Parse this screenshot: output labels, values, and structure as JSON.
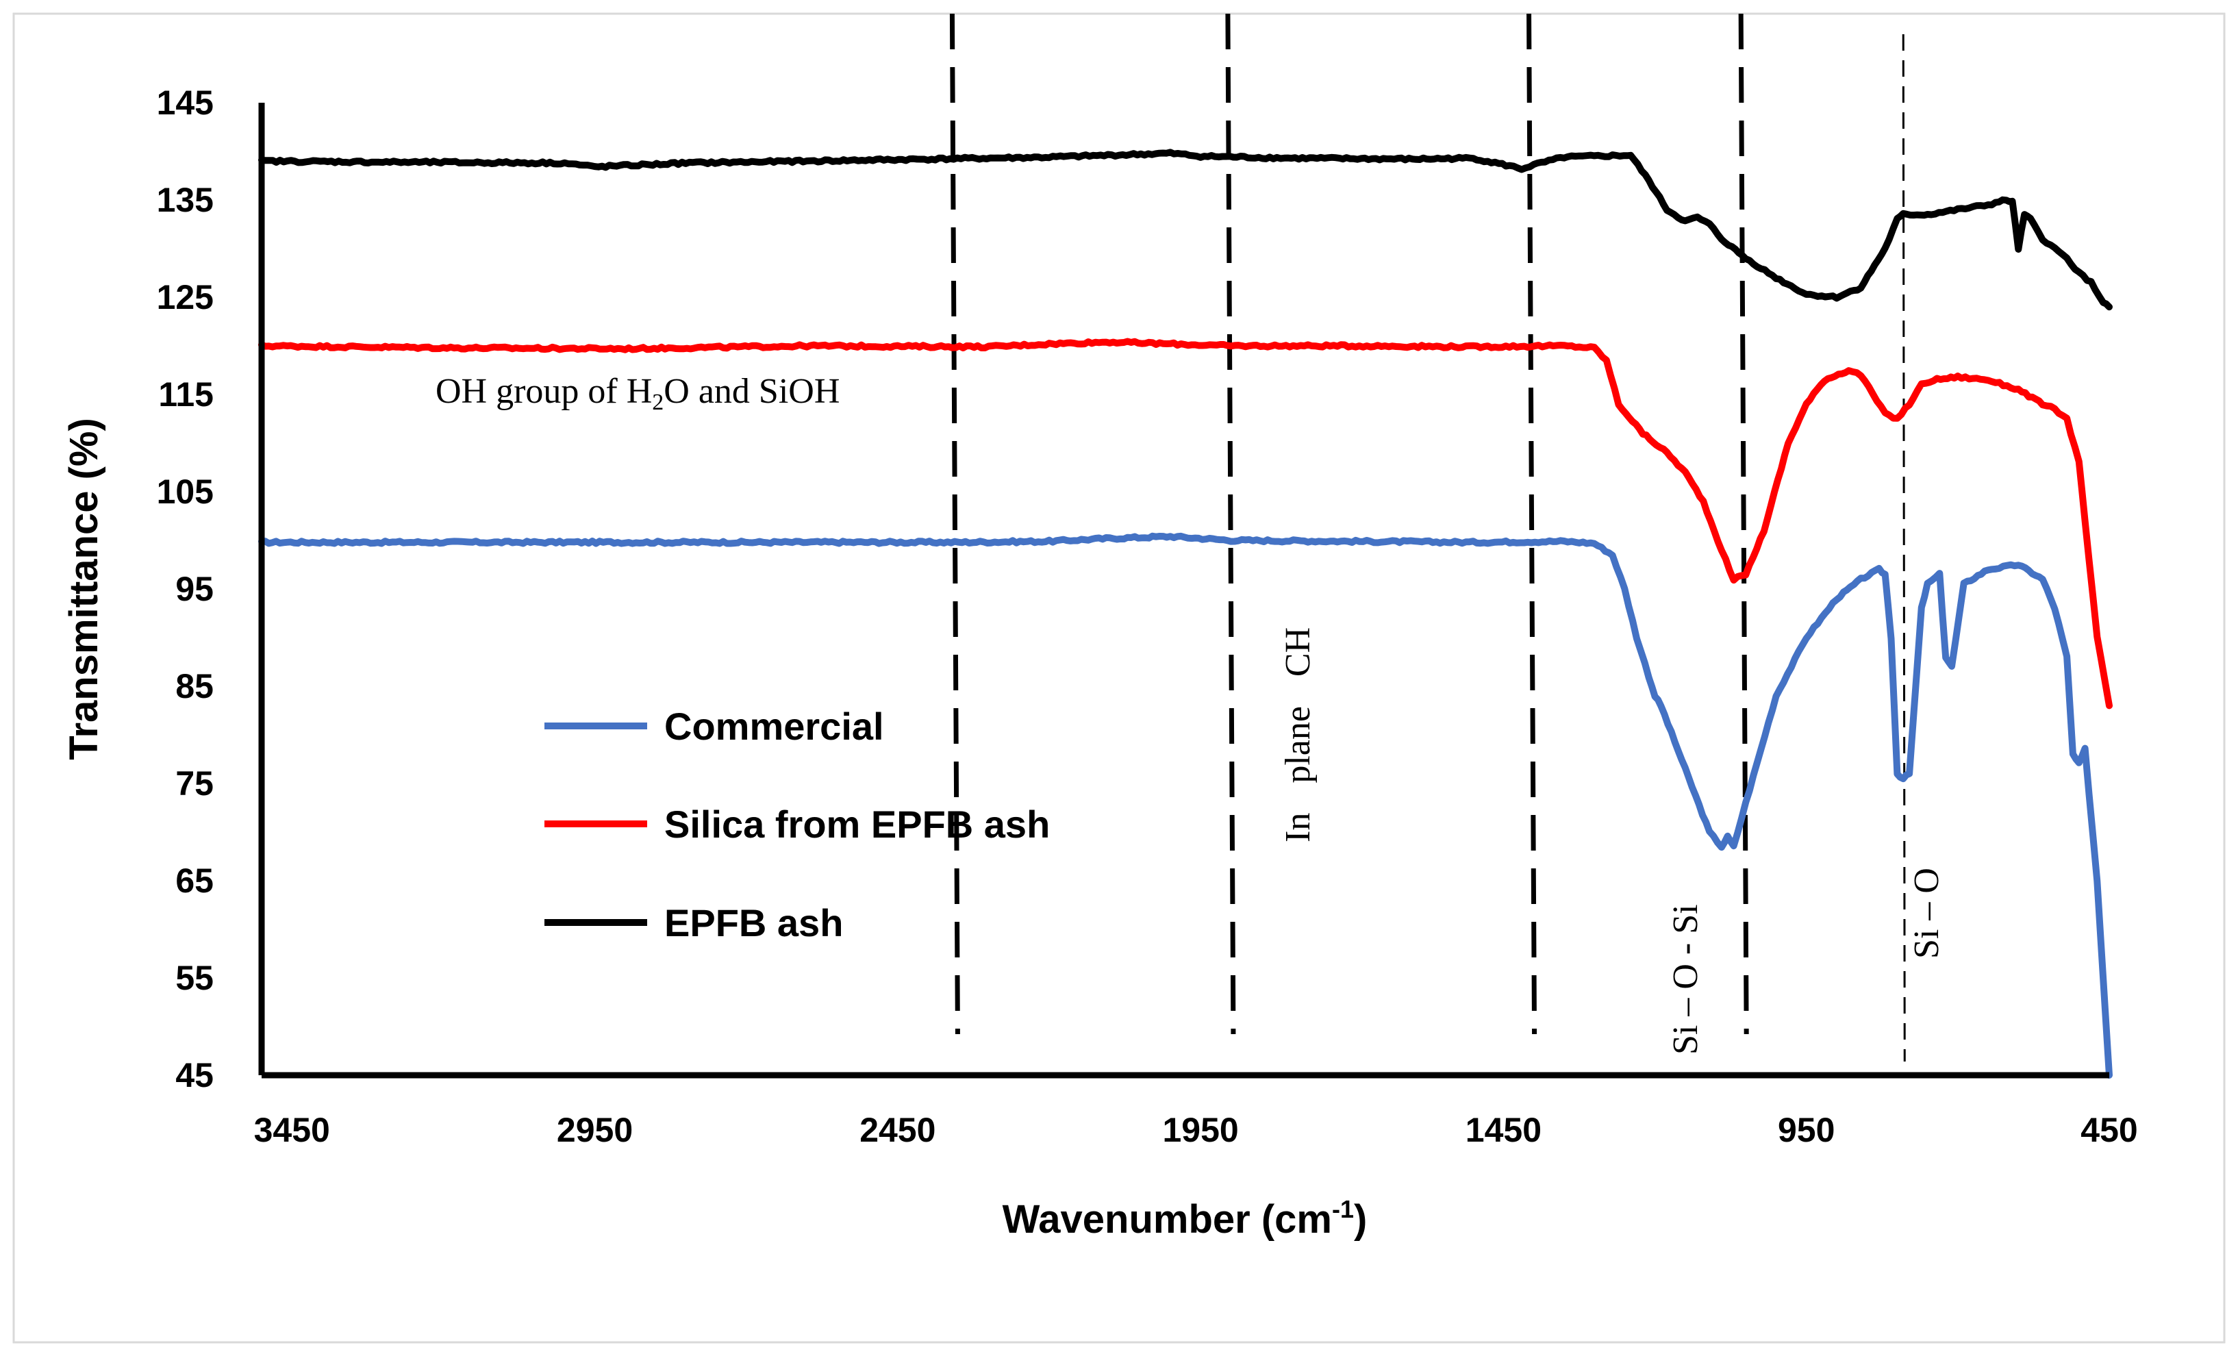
{
  "chart_data": {
    "type": "line",
    "title": "",
    "xlabel": "Wavenumber (cm",
    "xlabel_sup": "-1",
    "xlabel_suffix": ")",
    "ylabel": "Transmittance (%)",
    "xlim": [
      3500,
      450
    ],
    "ylim": [
      45,
      145
    ],
    "x_ticks": [
      3450,
      2950,
      2450,
      1950,
      1450,
      950,
      450
    ],
    "x_tick_labels": [
      "3450",
      "2950",
      "2450",
      "1950",
      "1450",
      "950",
      "450"
    ],
    "y_ticks": [
      145,
      135,
      125,
      115,
      105,
      95,
      85,
      75,
      65,
      55,
      45
    ],
    "y_tick_labels": [
      "145",
      "135",
      "125",
      "115",
      "105",
      "95",
      "85",
      "75",
      "65",
      "55",
      "45"
    ],
    "grid": false,
    "legend_position": "lower-left",
    "series": [
      {
        "name": "Commercial",
        "color": "#4472C4",
        "x": [
          3500,
          3200,
          2900,
          2600,
          2350,
          2200,
          2100,
          2000,
          1900,
          1700,
          1500,
          1350,
          1300,
          1270,
          1250,
          1230,
          1210,
          1200,
          1190,
          1150,
          1110,
          1090,
          1080,
          1070,
          1050,
          1000,
          950,
          900,
          860,
          830,
          820,
          810,
          800,
          790,
          780,
          760,
          750,
          730,
          720,
          710,
          690,
          650,
          600,
          560,
          540,
          520,
          510,
          500,
          490,
          470,
          460,
          450
        ],
        "y": [
          99.8,
          99.8,
          99.8,
          99.8,
          99.8,
          99.9,
          100.2,
          100.4,
          100.0,
          99.9,
          99.8,
          99.9,
          99.7,
          98.5,
          95.0,
          90.0,
          86.0,
          84.0,
          83.0,
          76.5,
          70.0,
          68.5,
          69.5,
          68.5,
          73.0,
          84.0,
          90.0,
          94.0,
          96.0,
          97.0,
          96.5,
          90.0,
          76.0,
          75.5,
          76.0,
          93.0,
          95.5,
          96.5,
          88.0,
          87.0,
          95.5,
          97.0,
          97.5,
          96.0,
          93.0,
          88.0,
          78.0,
          77.0,
          78.5,
          65.0,
          55.0,
          45.0
        ]
      },
      {
        "name": "Silica from EPFB ash",
        "color": "#FF0000",
        "x": [
          3500,
          3200,
          2900,
          2600,
          2300,
          2200,
          2100,
          2000,
          1900,
          1700,
          1500,
          1350,
          1300,
          1280,
          1260,
          1220,
          1180,
          1150,
          1120,
          1090,
          1070,
          1050,
          1020,
          980,
          950,
          920,
          880,
          860,
          840,
          820,
          800,
          780,
          760,
          740,
          700,
          650,
          600,
          560,
          540,
          520,
          500,
          490,
          470,
          450
        ],
        "y": [
          120.0,
          119.8,
          119.7,
          120.0,
          119.9,
          120.2,
          120.4,
          120.2,
          120.0,
          120.0,
          119.9,
          120.0,
          119.8,
          118.5,
          114.0,
          111.0,
          109.0,
          107.0,
          104.0,
          99.0,
          96.0,
          96.5,
          101.0,
          110.0,
          114.0,
          116.5,
          117.5,
          117.0,
          115.0,
          113.0,
          112.5,
          114.0,
          116.0,
          116.5,
          116.8,
          116.5,
          115.5,
          114.0,
          113.5,
          112.5,
          108.0,
          102.0,
          90.0,
          83.0
        ]
      },
      {
        "name": "EPFB ash",
        "color": "#000000",
        "x": [
          3500,
          3300,
          3000,
          2950,
          2800,
          2600,
          2400,
          2200,
          2000,
          1950,
          1800,
          1600,
          1500,
          1440,
          1420,
          1400,
          1350,
          1300,
          1240,
          1210,
          1180,
          1150,
          1130,
          1110,
          1090,
          1050,
          1000,
          950,
          900,
          860,
          820,
          800,
          790,
          750,
          700,
          650,
          620,
          610,
          600,
          590,
          580,
          560,
          540,
          520,
          500,
          480,
          460,
          450
        ],
        "y": [
          139.0,
          138.9,
          138.8,
          138.4,
          138.8,
          139.0,
          139.2,
          139.4,
          139.8,
          139.5,
          139.3,
          139.2,
          139.3,
          138.5,
          138.2,
          138.6,
          139.4,
          139.5,
          139.6,
          137.0,
          134.0,
          132.8,
          133.2,
          132.5,
          131.0,
          129.0,
          127.0,
          125.3,
          125.0,
          126.0,
          130.0,
          133.0,
          133.5,
          133.5,
          134.0,
          134.5,
          135.0,
          134.8,
          130.0,
          133.5,
          133.0,
          131.0,
          130.0,
          129.0,
          127.5,
          126.5,
          124.5,
          124.0
        ]
      }
    ],
    "vertical_markers": [
      {
        "x": 2360,
        "style": "bold"
      },
      {
        "x": 1905,
        "style": "bold"
      },
      {
        "x": 1408,
        "style": "bold"
      },
      {
        "x": 1058,
        "style": "bold"
      },
      {
        "x": 790,
        "style": "thin"
      }
    ],
    "annotations": [
      {
        "text": "OH group of H",
        "sub": "2",
        "text2": "O and SiOH"
      },
      {
        "text": "In plane CH"
      },
      {
        "text": "Si – O - Si"
      },
      {
        "text": "Si – O"
      }
    ]
  }
}
